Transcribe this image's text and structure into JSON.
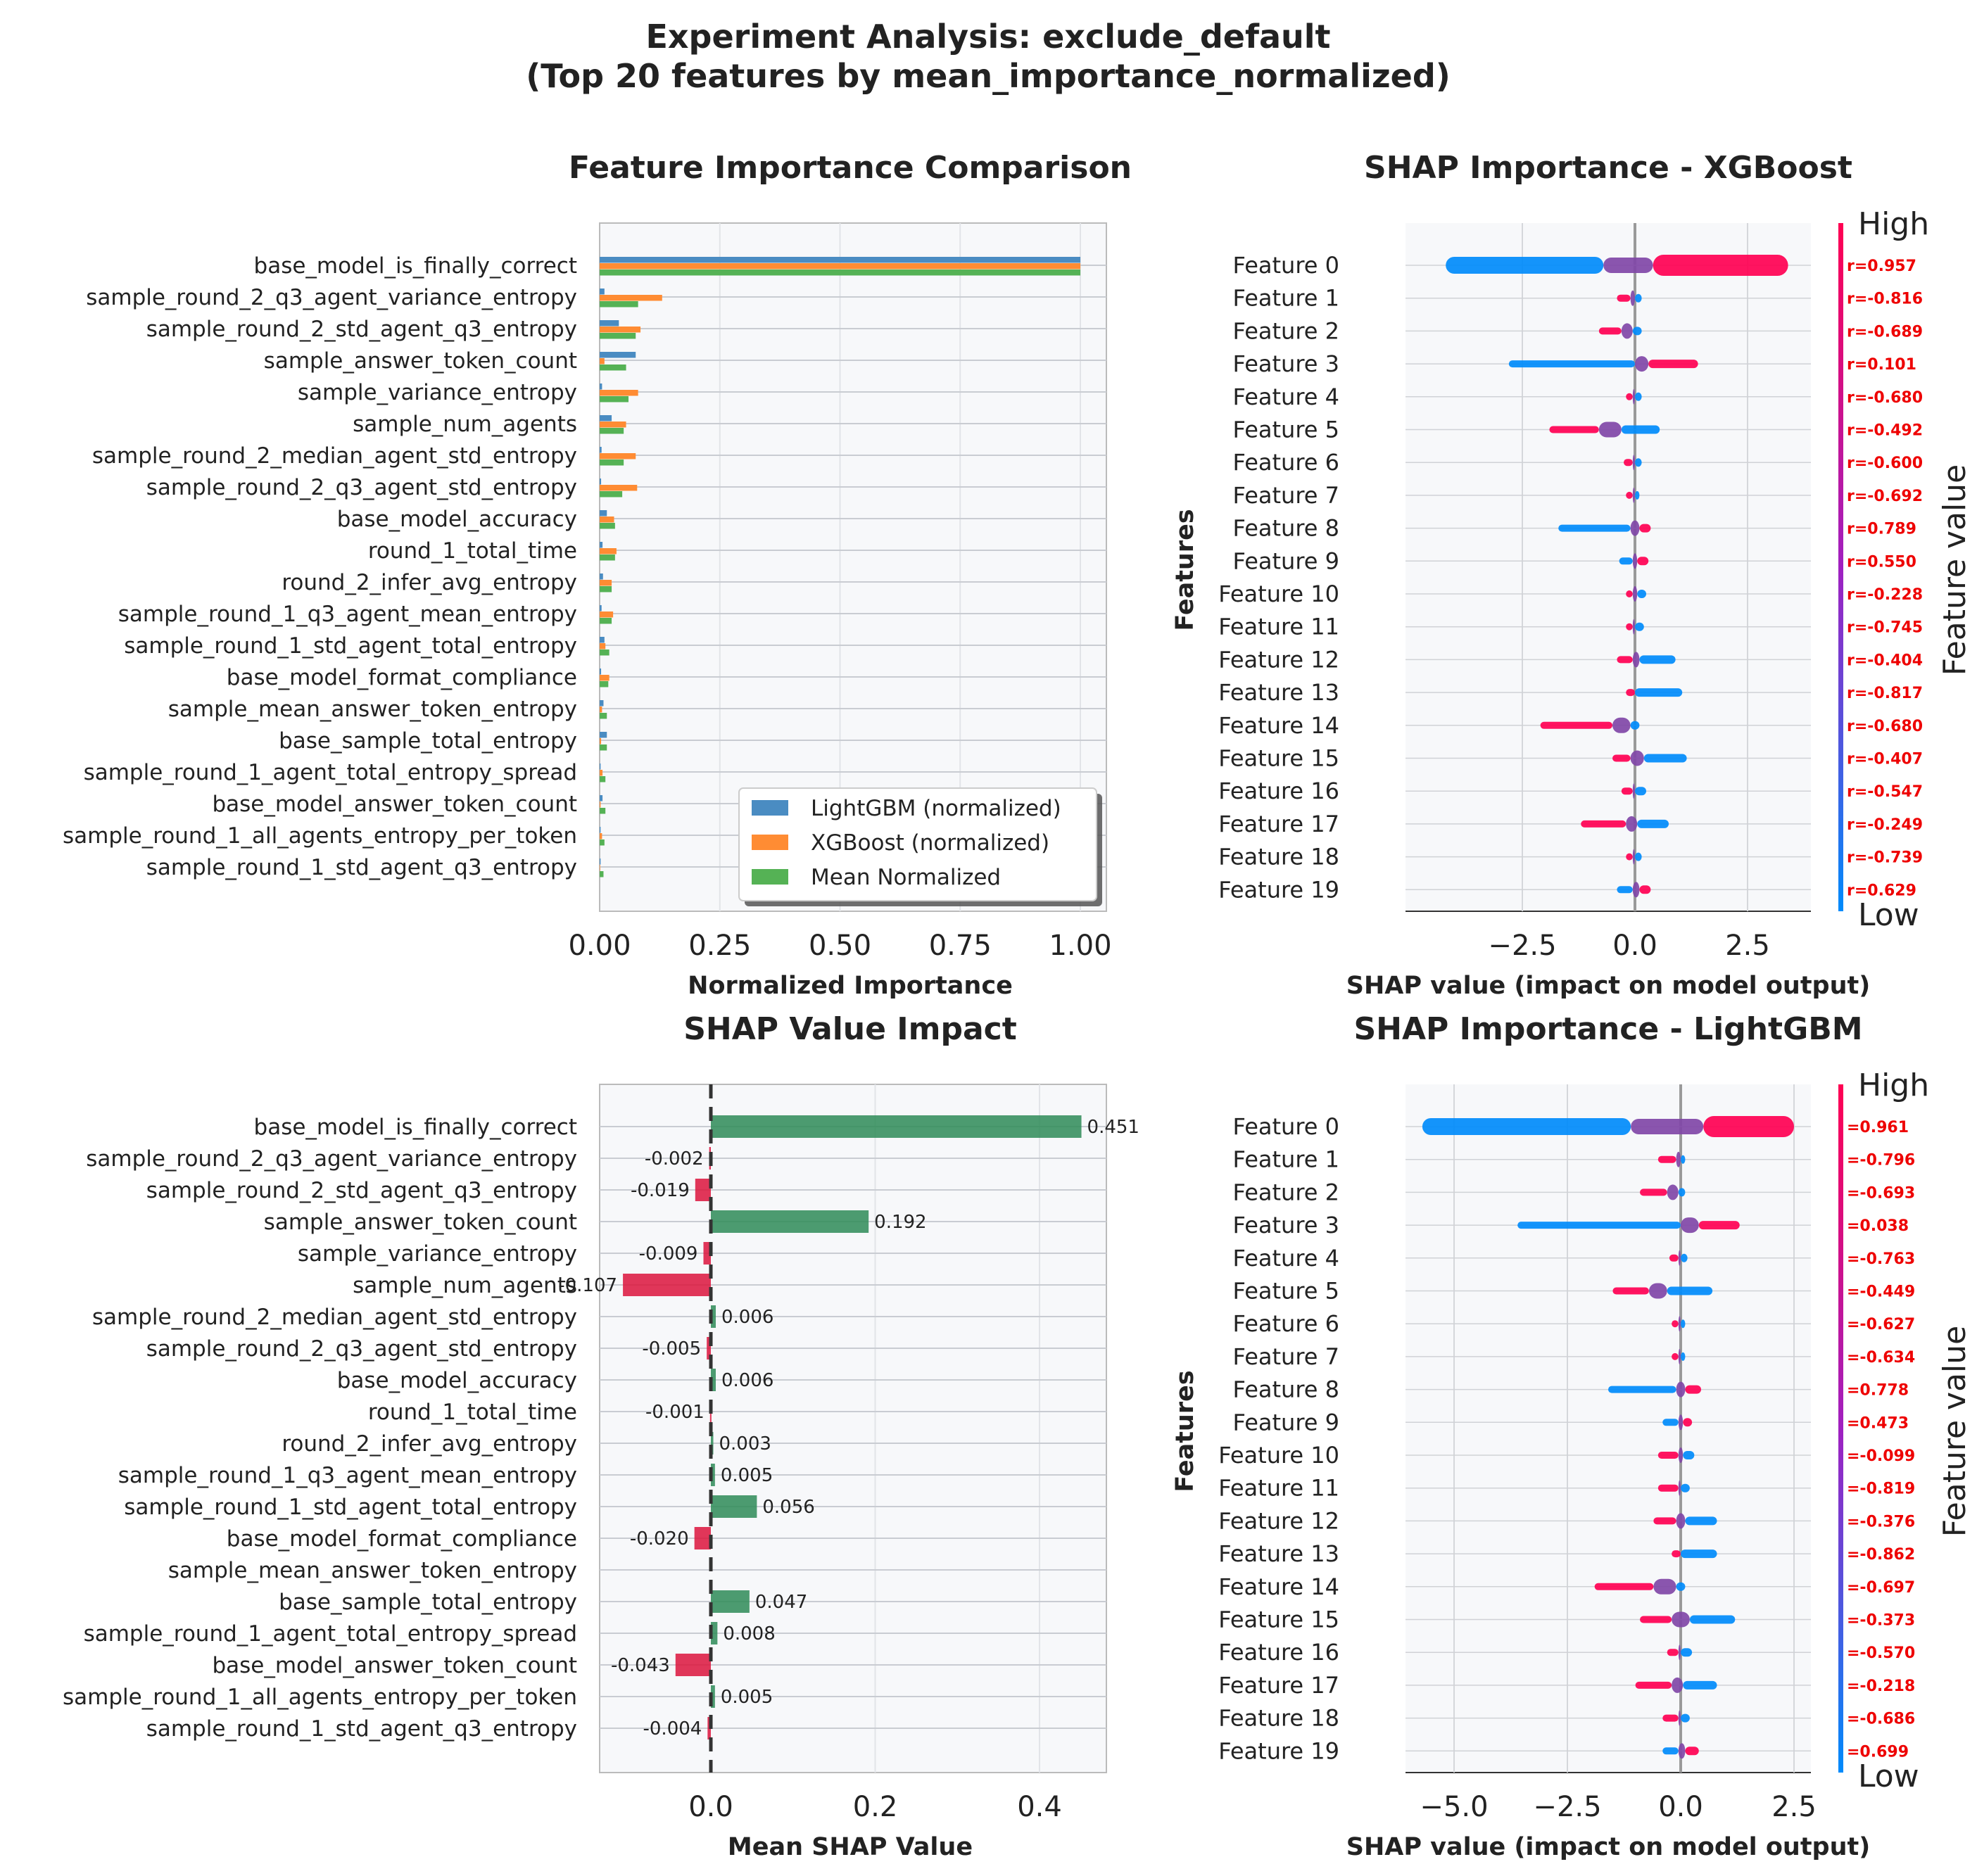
{
  "suptitle": {
    "line1": "Experiment Analysis: exclude_default",
    "line2": "(Top 20 features by mean_importance_normalized)"
  },
  "chart_data": [
    {
      "id": "importance",
      "type": "bar",
      "orientation": "horizontal",
      "title": "Feature Importance Comparison",
      "xlabel": "Normalized Importance",
      "xlim": [
        0,
        1.05
      ],
      "xticks": [
        "0.00",
        "0.25",
        "0.50",
        "0.75",
        "1.00"
      ],
      "categories": [
        "base_model_is_finally_correct",
        "sample_round_2_q3_agent_variance_entropy",
        "sample_round_2_std_agent_q3_entropy",
        "sample_answer_token_count",
        "sample_variance_entropy",
        "sample_num_agents",
        "sample_round_2_median_agent_std_entropy",
        "sample_round_2_q3_agent_std_entropy",
        "base_model_accuracy",
        "round_1_total_time",
        "round_2_infer_avg_entropy",
        "sample_round_1_q3_agent_mean_entropy",
        "sample_round_1_std_agent_total_entropy",
        "base_model_format_compliance",
        "sample_mean_answer_token_entropy",
        "base_sample_total_entropy",
        "sample_round_1_agent_total_entropy_spread",
        "base_model_answer_token_count",
        "sample_round_1_all_agents_entropy_per_token",
        "sample_round_1_std_agent_q3_entropy"
      ],
      "series": [
        {
          "name": "LightGBM (normalized)",
          "color": "#4a8cc2",
          "values": [
            1.0,
            0.01,
            0.04,
            0.075,
            0.005,
            0.025,
            0.004,
            0.003,
            0.015,
            0.006,
            0.007,
            0.004,
            0.01,
            0.003,
            0.008,
            0.015,
            0.002,
            0.006,
            0.002,
            0.002
          ]
        },
        {
          "name": "XGBoost (normalized)",
          "color": "#ff8c33",
          "values": [
            1.0,
            0.13,
            0.085,
            0.01,
            0.08,
            0.055,
            0.075,
            0.078,
            0.03,
            0.035,
            0.025,
            0.028,
            0.012,
            0.02,
            0.005,
            0.003,
            0.006,
            0.002,
            0.005,
            0.001
          ]
        },
        {
          "name": "Mean Normalized",
          "color": "#55b255",
          "values": [
            1.0,
            0.08,
            0.075,
            0.055,
            0.06,
            0.05,
            0.05,
            0.047,
            0.032,
            0.032,
            0.025,
            0.025,
            0.02,
            0.018,
            0.015,
            0.015,
            0.012,
            0.012,
            0.01,
            0.008
          ]
        }
      ],
      "legend_position": "lower-right"
    },
    {
      "id": "shap_impact",
      "type": "bar",
      "orientation": "horizontal",
      "title": "SHAP Value Impact",
      "xlabel": "Mean SHAP Value",
      "xlim": [
        -0.135,
        0.475
      ],
      "xticks": [
        "0.0",
        "0.2",
        "0.4"
      ],
      "categories": [
        "base_model_is_finally_correct",
        "sample_round_2_q3_agent_variance_entropy",
        "sample_round_2_std_agent_q3_entropy",
        "sample_answer_token_count",
        "sample_variance_entropy",
        "sample_num_agents",
        "sample_round_2_median_agent_std_entropy",
        "sample_round_2_q3_agent_std_entropy",
        "base_model_accuracy",
        "round_1_total_time",
        "round_2_infer_avg_entropy",
        "sample_round_1_q3_agent_mean_entropy",
        "sample_round_1_std_agent_total_entropy",
        "base_model_format_compliance",
        "sample_mean_answer_token_entropy",
        "base_sample_total_entropy",
        "sample_round_1_agent_total_entropy_spread",
        "base_model_answer_token_count",
        "sample_round_1_all_agents_entropy_per_token",
        "sample_round_1_std_agent_q3_entropy"
      ],
      "values": [
        0.451,
        -0.002,
        -0.019,
        0.192,
        -0.009,
        -0.107,
        0.006,
        -0.005,
        0.006,
        -0.001,
        0.003,
        0.005,
        0.056,
        -0.02,
        null,
        0.047,
        0.008,
        -0.043,
        0.005,
        -0.004
      ],
      "value_labels": [
        "0.451",
        "-0.002",
        "-0.019",
        "0.192",
        "-0.009",
        "-0.107",
        "0.006",
        "-0.005",
        "0.006",
        "-0.001",
        "0.003",
        "0.005",
        "0.056",
        "-0.020",
        "",
        "0.047",
        "0.008",
        "-0.043",
        "0.005",
        "-0.004"
      ],
      "positive_color": "#2e8b57",
      "negative_color": "#dc143c"
    },
    {
      "id": "shap_xgb",
      "type": "scatter",
      "title": "SHAP Importance - XGBoost",
      "xlabel": "SHAP value (impact on model output)",
      "ylabel": "Features",
      "xlim": [
        -4.5,
        3.6
      ],
      "xticks": [
        -2.5,
        0.0,
        2.5
      ],
      "xtick_labels": [
        "−2.5",
        "0.0",
        "2.5"
      ],
      "features": [
        "Feature 0",
        "Feature 1",
        "Feature 2",
        "Feature 3",
        "Feature 4",
        "Feature 5",
        "Feature 6",
        "Feature 7",
        "Feature 8",
        "Feature 9",
        "Feature 10",
        "Feature 11",
        "Feature 12",
        "Feature 13",
        "Feature 14",
        "Feature 15",
        "Feature 16",
        "Feature 17",
        "Feature 18",
        "Feature 19"
      ],
      "correlations": [
        "r=0.957",
        "r=-0.816",
        "r=-0.689",
        "r=0.101",
        "r=-0.680",
        "r=-0.492",
        "r=-0.600",
        "r=-0.692",
        "r=0.789",
        "r=0.550",
        "r=-0.228",
        "r=-0.745",
        "r=-0.404",
        "r=-0.817",
        "r=-0.680",
        "r=-0.407",
        "r=-0.547",
        "r=-0.249",
        "r=-0.739",
        "r=0.629"
      ],
      "spreads": [
        [
          -4.2,
          -0.7,
          0.4,
          3.4
        ],
        [
          -0.4,
          -0.1,
          0.0,
          0.15
        ],
        [
          -0.8,
          -0.3,
          -0.05,
          0.15
        ],
        [
          -2.8,
          0.0,
          0.3,
          1.4
        ],
        [
          -0.2,
          -0.05,
          0.0,
          0.15
        ],
        [
          -1.9,
          -0.8,
          -0.3,
          0.55
        ],
        [
          -0.25,
          -0.05,
          0.0,
          0.15
        ],
        [
          -0.2,
          -0.05,
          0.0,
          0.1
        ],
        [
          -1.7,
          -0.1,
          0.1,
          0.35
        ],
        [
          -0.35,
          -0.05,
          0.05,
          0.3
        ],
        [
          -0.2,
          -0.05,
          0.05,
          0.25
        ],
        [
          -0.2,
          -0.05,
          0.0,
          0.2
        ],
        [
          -0.4,
          -0.05,
          0.1,
          0.9
        ],
        [
          -0.2,
          0.0,
          0.0,
          1.05
        ],
        [
          -2.1,
          -0.5,
          -0.1,
          0.1
        ],
        [
          -0.5,
          -0.1,
          0.2,
          1.15
        ],
        [
          -0.3,
          -0.05,
          0.0,
          0.25
        ],
        [
          -1.2,
          -0.2,
          0.05,
          0.75
        ],
        [
          -0.2,
          -0.05,
          0.0,
          0.15
        ],
        [
          -0.4,
          -0.05,
          0.1,
          0.35
        ]
      ],
      "colorbar": {
        "high": "High",
        "low": "Low",
        "label": "Feature value",
        "high_color": "#ff0052",
        "low_color": "#008bfb"
      }
    },
    {
      "id": "shap_lgbm",
      "type": "scatter",
      "title": "SHAP Importance - LightGBM",
      "xlabel": "SHAP value (impact on model output)",
      "ylabel": "Features",
      "xlim": [
        -6.0,
        3.0
      ],
      "xticks": [
        -5.0,
        -2.5,
        0.0,
        2.5
      ],
      "xtick_labels": [
        "−5.0",
        "−2.5",
        "0.0",
        "2.5"
      ],
      "features": [
        "Feature 0",
        "Feature 1",
        "Feature 2",
        "Feature 3",
        "Feature 4",
        "Feature 5",
        "Feature 6",
        "Feature 7",
        "Feature 8",
        "Feature 9",
        "Feature 10",
        "Feature 11",
        "Feature 12",
        "Feature 13",
        "Feature 14",
        "Feature 15",
        "Feature 16",
        "Feature 17",
        "Feature 18",
        "Feature 19"
      ],
      "correlations": [
        "=0.961",
        "=-0.796",
        "=-0.693",
        "=0.038",
        "=-0.763",
        "=-0.449",
        "=-0.627",
        "=-0.634",
        "=0.778",
        "=0.473",
        "=-0.099",
        "=-0.819",
        "=-0.376",
        "=-0.862",
        "=-0.697",
        "=-0.373",
        "=-0.570",
        "=-0.218",
        "=-0.686",
        "=0.699"
      ],
      "spreads": [
        [
          -5.7,
          -1.1,
          0.5,
          2.5
        ],
        [
          -0.5,
          -0.1,
          0.0,
          0.1
        ],
        [
          -0.9,
          -0.3,
          -0.05,
          0.1
        ],
        [
          -3.6,
          0.0,
          0.4,
          1.3
        ],
        [
          -0.25,
          -0.05,
          0.0,
          0.15
        ],
        [
          -1.5,
          -0.7,
          -0.3,
          0.7
        ],
        [
          -0.2,
          -0.05,
          0.0,
          0.1
        ],
        [
          -0.2,
          -0.05,
          0.0,
          0.1
        ],
        [
          -1.6,
          -0.1,
          0.1,
          0.45
        ],
        [
          -0.4,
          -0.05,
          0.05,
          0.25
        ],
        [
          -0.5,
          -0.05,
          0.05,
          0.3
        ],
        [
          -0.5,
          -0.05,
          0.0,
          0.2
        ],
        [
          -0.6,
          -0.1,
          0.1,
          0.8
        ],
        [
          -0.2,
          0.0,
          0.0,
          0.8
        ],
        [
          -1.9,
          -0.6,
          -0.1,
          0.1
        ],
        [
          -0.9,
          -0.2,
          0.2,
          1.2
        ],
        [
          -0.3,
          -0.05,
          0.0,
          0.25
        ],
        [
          -1.0,
          -0.2,
          0.05,
          0.8
        ],
        [
          -0.4,
          -0.05,
          0.0,
          0.2
        ],
        [
          -0.4,
          -0.05,
          0.1,
          0.4
        ]
      ],
      "colorbar": {
        "high": "High",
        "low": "Low",
        "label": "Feature value",
        "high_color": "#ff0052",
        "low_color": "#008bfb"
      }
    }
  ]
}
